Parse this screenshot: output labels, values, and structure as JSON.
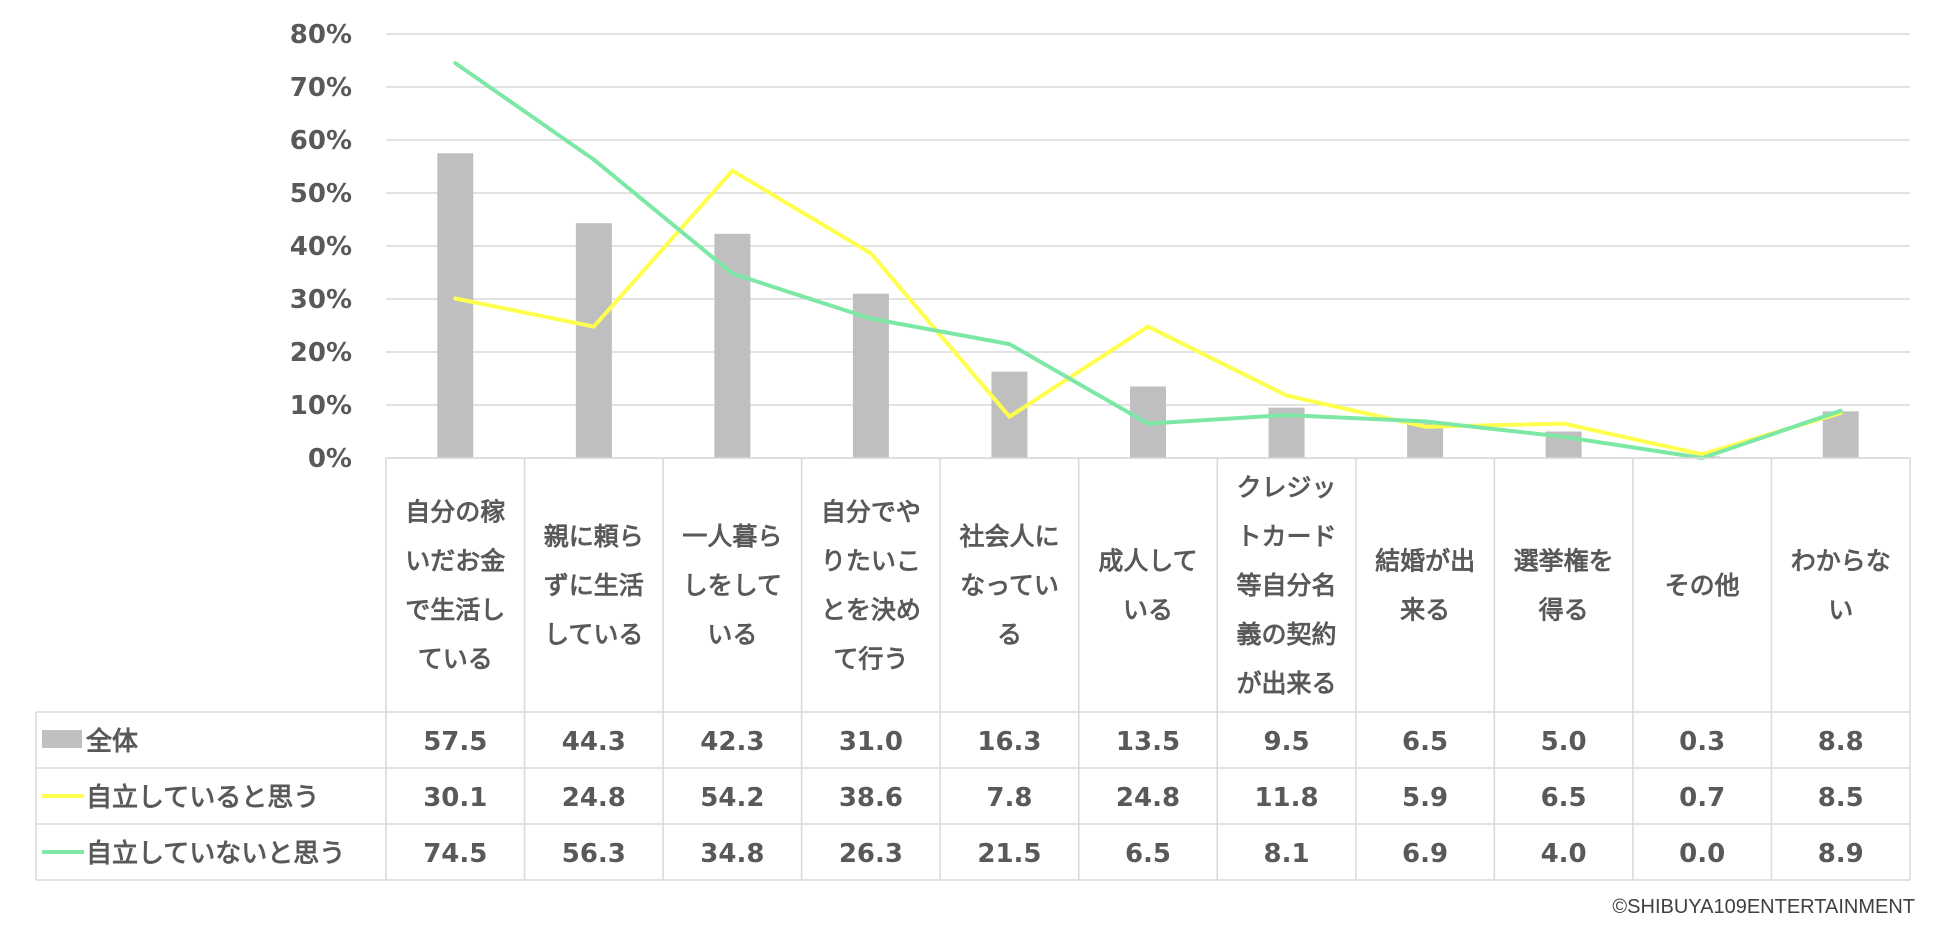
{
  "chart_data": {
    "type": "bar",
    "categories": [
      [
        "自分の稼",
        "いだお金",
        "で生活し",
        "ている"
      ],
      [
        "親に頼ら",
        "ずに生活",
        "している"
      ],
      [
        "一人暮ら",
        "しをして",
        "いる"
      ],
      [
        "自分でや",
        "りたいこ",
        "とを決め",
        "て行う"
      ],
      [
        "社会人に",
        "なってい",
        "る"
      ],
      [
        "成人して",
        "いる"
      ],
      [
        "クレジッ",
        "トカード",
        "等自分名",
        "義の契約",
        "が出来る"
      ],
      [
        "結婚が出",
        "来る"
      ],
      [
        "選挙権を",
        "得る"
      ],
      [
        "その他"
      ],
      [
        "わからな",
        "い"
      ]
    ],
    "series": [
      {
        "name": "全体",
        "kind": "bar",
        "color": "#bfbfbf",
        "values": [
          57.5,
          44.3,
          42.3,
          31.0,
          16.3,
          13.5,
          9.5,
          6.5,
          5.0,
          0.3,
          8.8
        ],
        "labels": [
          "57.5",
          "44.3",
          "42.3",
          "31.0",
          "16.3",
          "13.5",
          "9.5",
          "6.5",
          "5.0",
          "0.3",
          "8.8"
        ]
      },
      {
        "name": "自立していると思う",
        "kind": "line",
        "color": "#ffff4d",
        "values": [
          30.1,
          24.8,
          54.2,
          38.6,
          7.8,
          24.8,
          11.8,
          5.9,
          6.5,
          0.7,
          8.5
        ],
        "labels": [
          "30.1",
          "24.8",
          "54.2",
          "38.6",
          "7.8",
          "24.8",
          "11.8",
          "5.9",
          "6.5",
          "0.7",
          "8.5"
        ]
      },
      {
        "name": "自立していないと思う",
        "kind": "line",
        "color": "#7de8a6",
        "values": [
          74.5,
          56.3,
          34.8,
          26.3,
          21.5,
          6.5,
          8.1,
          6.9,
          4.0,
          0.0,
          8.9
        ],
        "labels": [
          "74.5",
          "56.3",
          "34.8",
          "26.3",
          "21.5",
          "6.5",
          "8.1",
          "6.9",
          "4.0",
          "0.0",
          "8.9"
        ]
      }
    ],
    "y_ticks": [
      "0%",
      "10%",
      "20%",
      "30%",
      "40%",
      "50%",
      "60%",
      "70%",
      "80%"
    ],
    "ylim": [
      0,
      80
    ],
    "grid": true,
    "legend": "data-table"
  },
  "copyright": "©SHIBUYA109ENTERTAINMENT"
}
